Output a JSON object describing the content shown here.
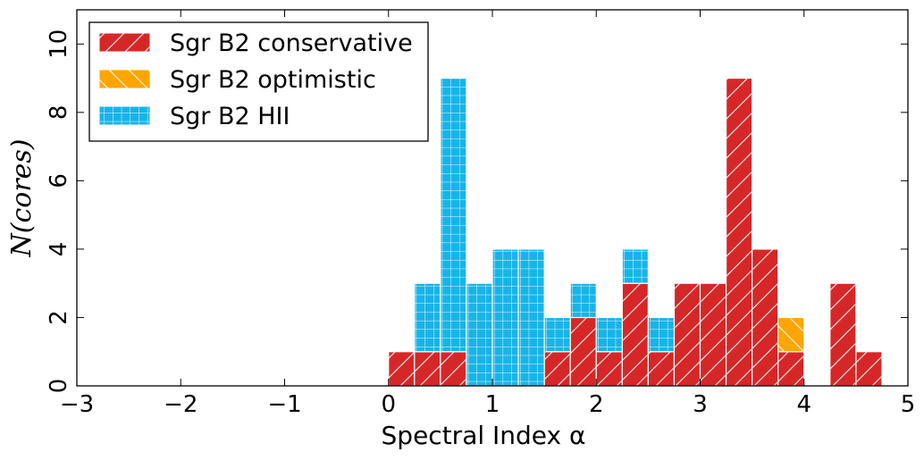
{
  "chart_data": {
    "type": "bar",
    "xlabel": "Spectral Index α",
    "ylabel": "N(cores)",
    "xlim": [
      -3,
      5
    ],
    "ylim": [
      0,
      11
    ],
    "xticks": [
      "−3",
      "−2",
      "−1",
      "0",
      "1",
      "2",
      "3",
      "4",
      "5"
    ],
    "yticks": [
      "0",
      "2",
      "4",
      "6",
      "8",
      "10"
    ],
    "bin_edges": [
      0,
      0.25,
      0.5,
      0.75,
      1.0,
      1.25,
      1.5,
      1.75,
      2.0,
      2.25,
      2.5,
      2.75,
      3.0,
      3.25,
      3.5,
      3.75,
      4.0,
      4.25,
      4.5,
      4.75
    ],
    "stacked": true,
    "legend_position": "top-left",
    "series": [
      {
        "name": "Sgr B2 conservative",
        "color": "#d62728",
        "hatch": "diagonal",
        "values": [
          1,
          1,
          1,
          0,
          0,
          0,
          1,
          2,
          1,
          3,
          1,
          3,
          3,
          9,
          4,
          1,
          0,
          3,
          1
        ]
      },
      {
        "name": "Sgr B2 optimistic",
        "color": "#ffa500",
        "hatch": "back-diagonal",
        "values": [
          0,
          0,
          0,
          0,
          0,
          0,
          0,
          0,
          0,
          0,
          0,
          0,
          0,
          0,
          0,
          1,
          0,
          0,
          0
        ]
      },
      {
        "name": "Sgr B2 HII",
        "color": "#17b4e8",
        "hatch": "grid",
        "values": [
          0,
          2,
          8,
          3,
          4,
          4,
          1,
          1,
          1,
          1,
          1,
          0,
          0,
          0,
          0,
          0,
          0,
          0,
          0
        ]
      }
    ]
  }
}
